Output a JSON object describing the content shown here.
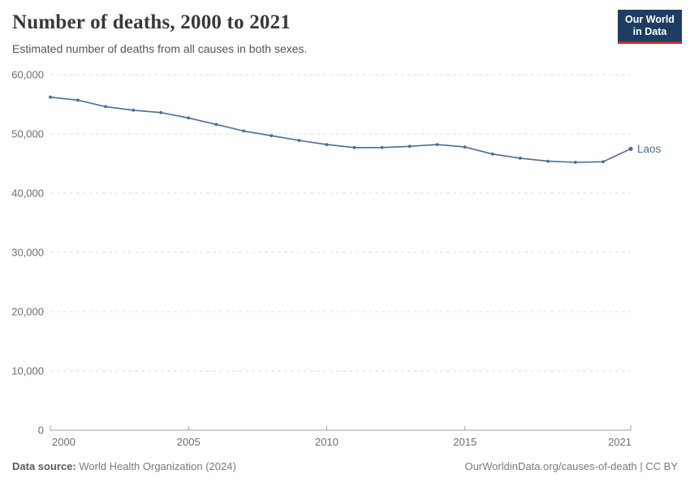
{
  "header": {
    "title": "Number of deaths, 2000 to 2021",
    "subtitle": "Estimated number of deaths from all causes in both sexes.",
    "logo": {
      "line1": "Our World",
      "line2": "in Data",
      "bg": "#1d3d63",
      "bar": "#cf2420"
    }
  },
  "chart_data": {
    "type": "line",
    "title": "Number of deaths, 2000 to 2021",
    "xlabel": "",
    "ylabel": "",
    "xlim": [
      2000,
      2021
    ],
    "ylim": [
      0,
      60000
    ],
    "grid": "horizontal-dashed",
    "legend_position": "end-of-line-label",
    "x": [
      2000,
      2001,
      2002,
      2003,
      2004,
      2005,
      2006,
      2007,
      2008,
      2009,
      2010,
      2011,
      2012,
      2013,
      2014,
      2015,
      2016,
      2017,
      2018,
      2019,
      2020,
      2021
    ],
    "series": [
      {
        "name": "Laos",
        "color": "#4c6a9c",
        "values": [
          56200,
          55700,
          54600,
          54000,
          53600,
          52700,
          51600,
          50500,
          49700,
          48900,
          48200,
          47700,
          47700,
          47900,
          48200,
          47800,
          46600,
          45900,
          45400,
          45200,
          45300,
          47500
        ]
      }
    ],
    "yticks": [
      {
        "value": 0,
        "label": "0"
      },
      {
        "value": 10000,
        "label": "10,000"
      },
      {
        "value": 20000,
        "label": "20,000"
      },
      {
        "value": 30000,
        "label": "30,000"
      },
      {
        "value": 40000,
        "label": "40,000"
      },
      {
        "value": 50000,
        "label": "50,000"
      },
      {
        "value": 60000,
        "label": "60,000"
      }
    ],
    "xticks": [
      {
        "value": 2000,
        "label": "2000",
        "anchor": "start"
      },
      {
        "value": 2005,
        "label": "2005",
        "anchor": "middle"
      },
      {
        "value": 2010,
        "label": "2010",
        "anchor": "middle"
      },
      {
        "value": 2015,
        "label": "2015",
        "anchor": "middle"
      },
      {
        "value": 2021,
        "label": "2021",
        "anchor": "end"
      }
    ],
    "colors": {
      "grid": "#e2e2e2",
      "axis": "#a0a0a0",
      "tick_text": "#6e6e6e"
    }
  },
  "footer": {
    "source_label": "Data source:",
    "source_value": "World Health Organization (2024)",
    "link": "OurWorldinData.org/causes-of-death | CC BY"
  }
}
